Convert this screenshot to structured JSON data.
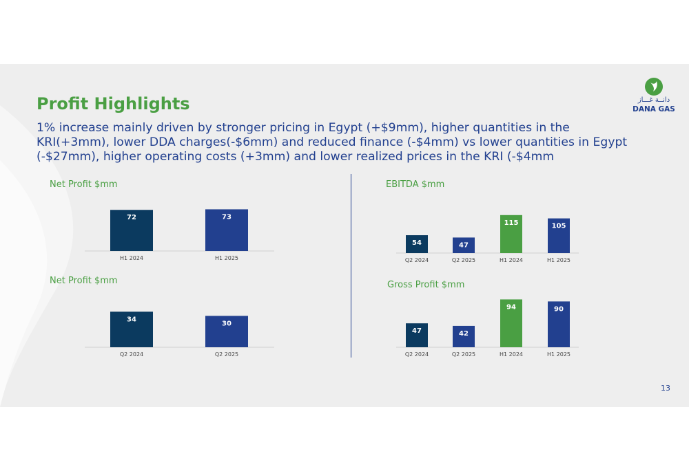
{
  "title": "Profit Highlights",
  "subtitle": "1% increase mainly driven by stronger pricing in Egypt (+$9mm), higher quantities in the KRI(+3mm), lower DDA charges(-$6mm) and reduced finance (-$4mm) vs lower quantities in Egypt (-$27mm), higher operating costs (+3mm) and lower realized prices in the KRI (-$4mm",
  "logo": {
    "arabic": "دانــة غـــاز",
    "english": "DANA GAS"
  },
  "page_number": "13",
  "colors": {
    "title_green": "#4a9f43",
    "navy": "#0b3a5f",
    "blue": "#22408f",
    "green": "#4a9f43",
    "background": "#eeeeee"
  },
  "chart_data": [
    {
      "type": "bar",
      "title": "Net Profit $mm",
      "categories": [
        "H1 2024",
        "H1 2025"
      ],
      "values": [
        72,
        73
      ],
      "colors": [
        "#0b3a5f",
        "#22408f"
      ]
    },
    {
      "type": "bar",
      "title": "Net Profit $mm",
      "categories": [
        "Q2 2024",
        "Q2 2025"
      ],
      "values": [
        34,
        30
      ],
      "colors": [
        "#0b3a5f",
        "#22408f"
      ]
    },
    {
      "type": "bar",
      "title": "EBITDA $mm",
      "categories": [
        "Q2 2024",
        "Q2 2025",
        "H1 2024",
        "H1 2025"
      ],
      "values": [
        54,
        47,
        115,
        105
      ],
      "colors": [
        "#0b3a5f",
        "#22408f",
        "#4a9f43",
        "#22408f"
      ]
    },
    {
      "type": "bar",
      "title": "Gross Profit $mm",
      "categories": [
        "Q2 2024",
        "Q2 2025",
        "H1 2024",
        "H1 2025"
      ],
      "values": [
        47,
        42,
        94,
        90
      ],
      "colors": [
        "#0b3a5f",
        "#22408f",
        "#4a9f43",
        "#22408f"
      ]
    }
  ]
}
